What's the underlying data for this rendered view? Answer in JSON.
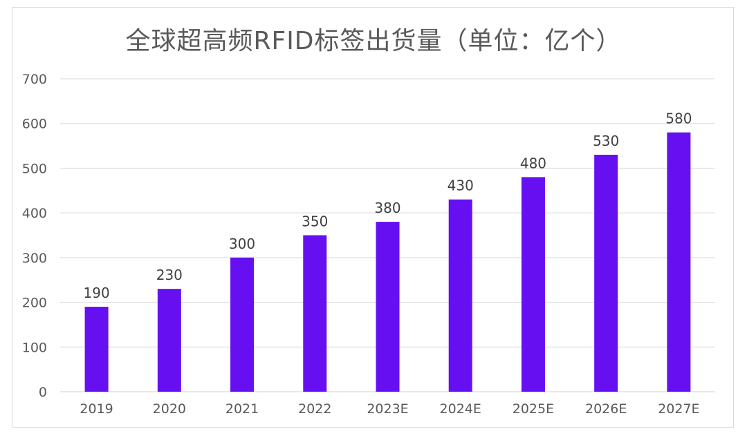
{
  "chart_data": {
    "type": "bar",
    "title": "全球超高频RFID标签出货量（单位：亿个）",
    "categories": [
      "2019",
      "2020",
      "2021",
      "2022",
      "2023E",
      "2024E",
      "2025E",
      "2026E",
      "2027E"
    ],
    "values": [
      190,
      230,
      300,
      350,
      380,
      430,
      480,
      530,
      580
    ],
    "xlabel": "",
    "ylabel": "",
    "ylim": [
      0,
      700
    ],
    "yticks": [
      0,
      100,
      200,
      300,
      400,
      500,
      600,
      700
    ],
    "grid": true,
    "data_labels": true,
    "bar_color": "#6610f2"
  }
}
